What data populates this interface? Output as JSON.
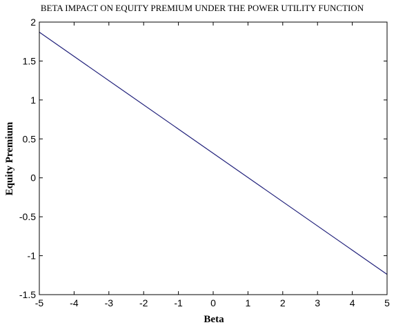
{
  "chart_data": {
    "type": "line",
    "title": "BETA IMPACT ON EQUITY PREMIUM UNDER THE POWER UTILITY FUNCTION",
    "xlabel": "Beta",
    "ylabel": "Equity Premium",
    "xlim": [
      -5,
      5
    ],
    "ylim": [
      -1.5,
      2
    ],
    "xticks": [
      "-5",
      "-4",
      "-3",
      "-2",
      "-1",
      "0",
      "1",
      "2",
      "3",
      "4",
      "5"
    ],
    "yticks": [
      "-1.5",
      "-1",
      "-0.5",
      "0",
      "0.5",
      "1",
      "1.5",
      "2"
    ],
    "grid": false,
    "legend": "none",
    "series": [
      {
        "color": "#1f1f7a",
        "x": [
          -5,
          5
        ],
        "y": [
          1.87,
          -1.24
        ]
      }
    ]
  }
}
